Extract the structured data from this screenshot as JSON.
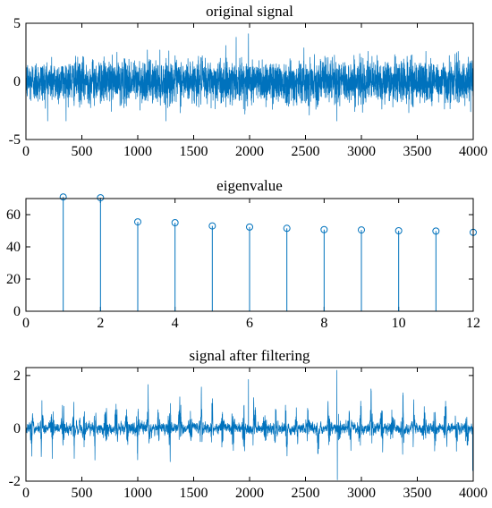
{
  "chart_data": [
    {
      "type": "line",
      "title": "original signal",
      "xlabel": "",
      "ylabel": "",
      "xlim": [
        0,
        4000
      ],
      "ylim": [
        -5,
        5
      ],
      "x_ticks": [
        "0",
        "500",
        "1000",
        "1500",
        "2000",
        "2500",
        "3000",
        "3500",
        "4000"
      ],
      "y_ticks": [
        "-5",
        "0",
        "5"
      ],
      "grid": false,
      "legend": "none",
      "series": [
        {
          "color": "#0072BD",
          "n_samples": 4000,
          "description_values": {
            "mean": 0,
            "typical_amplitude": 1.2,
            "max": 4.1,
            "min": -3.4
          }
        }
      ]
    },
    {
      "type": "stem",
      "title": "eigenvalue",
      "xlabel": "",
      "ylabel": "",
      "xlim": [
        0,
        12
      ],
      "ylim": [
        0,
        70
      ],
      "x_ticks": [
        "0",
        "2",
        "4",
        "6",
        "8",
        "10",
        "12"
      ],
      "y_ticks": [
        "0",
        "20",
        "40",
        "60"
      ],
      "grid": false,
      "legend": "none",
      "series": [
        {
          "color": "#0072BD",
          "x": [
            1,
            2,
            3,
            4,
            5,
            6,
            7,
            8,
            9,
            10,
            11,
            12
          ],
          "values": [
            71,
            70.5,
            55.5,
            55,
            53,
            52.3,
            51.5,
            50.7,
            50.5,
            50,
            49.8,
            49
          ]
        }
      ]
    },
    {
      "type": "line",
      "title": "signal after filtering",
      "xlabel": "",
      "ylabel": "",
      "xlim": [
        0,
        4000
      ],
      "ylim": [
        -2,
        2.3
      ],
      "x_ticks": [
        "0",
        "500",
        "1000",
        "1500",
        "2000",
        "2500",
        "3000",
        "3500",
        "4000"
      ],
      "y_ticks": [
        "-2",
        "0",
        "2"
      ],
      "grid": false,
      "legend": "none",
      "series": [
        {
          "color": "#0072BD",
          "n_samples": 4000,
          "description_values": {
            "mean": 0,
            "typical_amplitude": 0.5,
            "max": 2.2,
            "min": -1.95
          }
        }
      ]
    }
  ]
}
